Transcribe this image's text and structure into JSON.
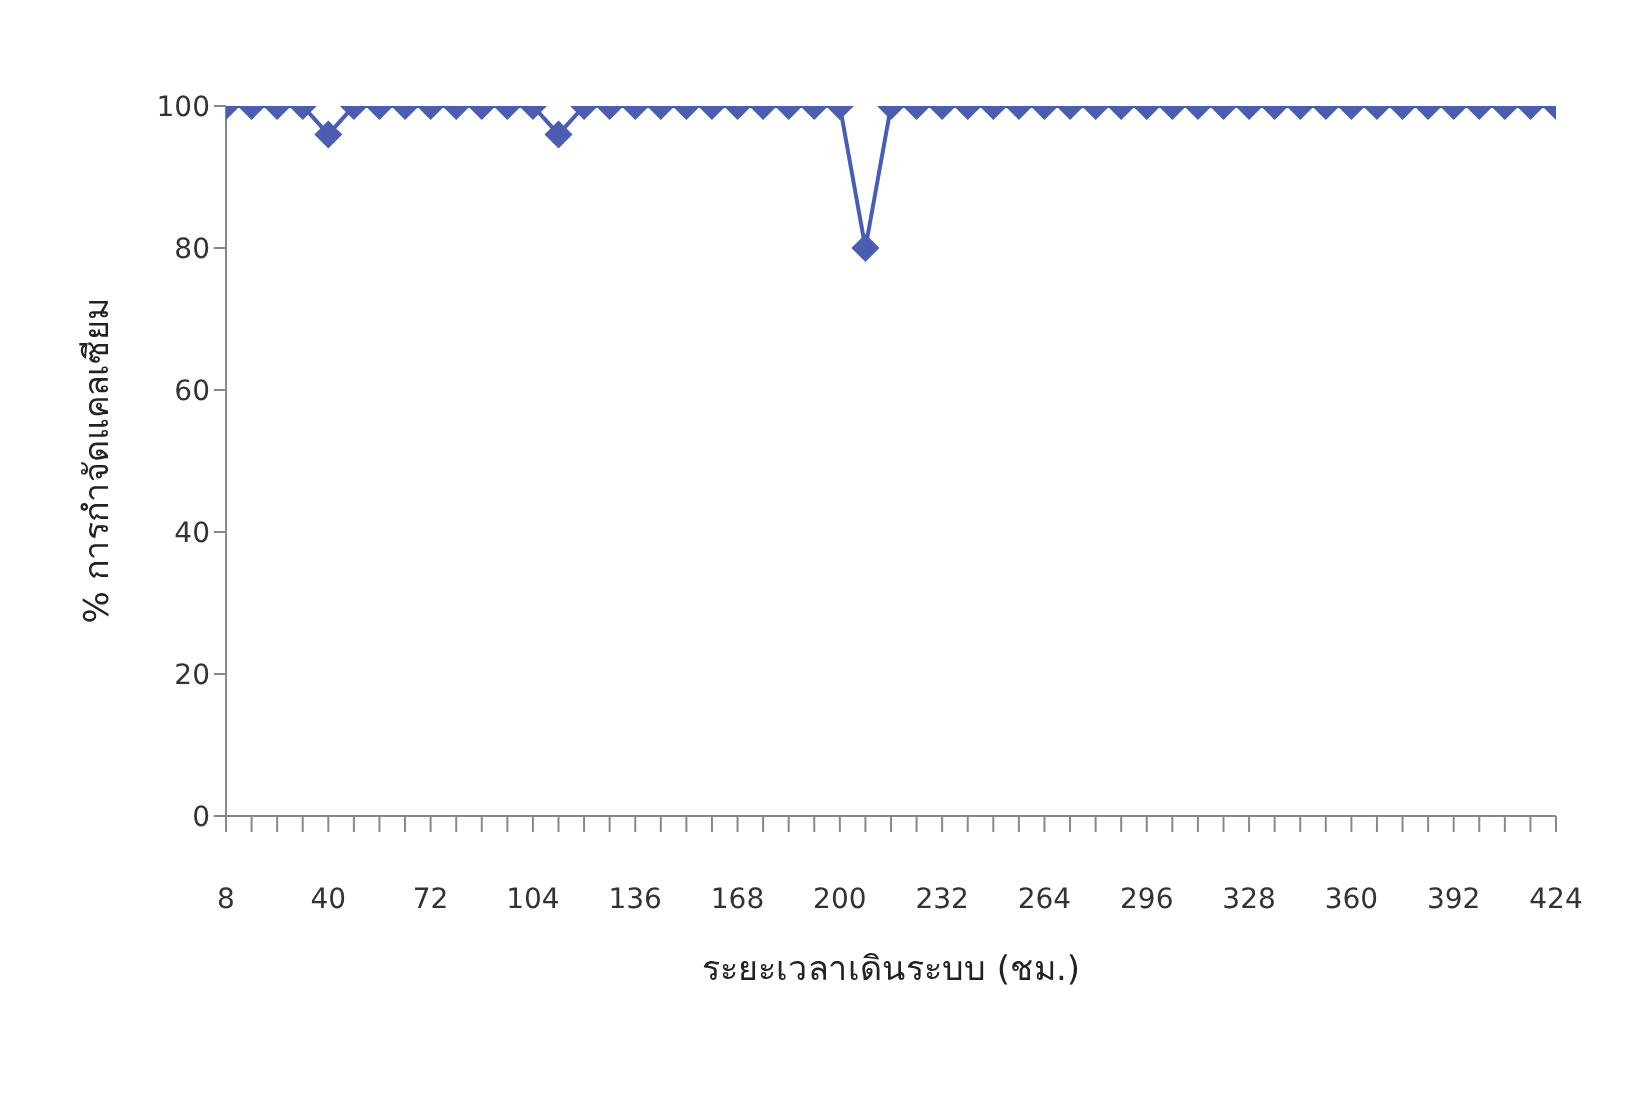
{
  "chart_data": {
    "type": "line",
    "xlabel": "ระยะเวลาเดินระบบ (ชม.)",
    "ylabel": "% การกำจัดแคลเซียม",
    "x": [
      8,
      16,
      24,
      32,
      40,
      48,
      56,
      64,
      72,
      80,
      88,
      96,
      104,
      112,
      120,
      128,
      136,
      144,
      152,
      160,
      168,
      176,
      184,
      192,
      200,
      208,
      216,
      224,
      232,
      240,
      248,
      256,
      264,
      272,
      280,
      288,
      296,
      304,
      312,
      320,
      328,
      336,
      344,
      352,
      360,
      368,
      376,
      384,
      392,
      400,
      408,
      416,
      424
    ],
    "series": [
      {
        "color": "#4a5db0",
        "values": [
          100,
          100,
          100,
          100,
          96,
          100,
          100,
          100,
          100,
          100,
          100,
          100,
          100,
          96,
          100,
          100,
          100,
          100,
          100,
          100,
          100,
          100,
          100,
          100,
          100,
          80,
          100,
          100,
          100,
          100,
          100,
          100,
          100,
          100,
          100,
          100,
          100,
          100,
          100,
          100,
          100,
          100,
          100,
          100,
          100,
          100,
          100,
          100,
          100,
          100,
          100,
          100,
          100
        ]
      }
    ],
    "xlim": [
      8,
      424
    ],
    "xticks": [
      8,
      {
        "value": 16,
        "label": null
      },
      {
        "value": 24,
        "label": null
      },
      {
        "value": 32,
        "label": null
      },
      40,
      {
        "value": 48,
        "label": null
      },
      {
        "value": 56,
        "label": null
      },
      {
        "value": 64,
        "label": null
      },
      72,
      {
        "value": 80,
        "label": null
      },
      {
        "value": 88,
        "label": null
      },
      {
        "value": 96,
        "label": null
      },
      104,
      {
        "value": 112,
        "label": null
      },
      {
        "value": 120,
        "label": null
      },
      {
        "value": 128,
        "label": null
      },
      136,
      {
        "value": 144,
        "label": null
      },
      {
        "value": 152,
        "label": null
      },
      {
        "value": 160,
        "label": null
      },
      168,
      {
        "value": 176,
        "label": null
      },
      {
        "value": 184,
        "label": null
      },
      {
        "value": 192,
        "label": null
      },
      200,
      {
        "value": 208,
        "label": null
      },
      {
        "value": 216,
        "label": null
      },
      {
        "value": 224,
        "label": null
      },
      232,
      {
        "value": 240,
        "label": null
      },
      {
        "value": 248,
        "label": null
      },
      {
        "value": 256,
        "label": null
      },
      264,
      {
        "value": 272,
        "label": null
      },
      {
        "value": 280,
        "label": null
      },
      {
        "value": 288,
        "label": null
      },
      296,
      {
        "value": 304,
        "label": null
      },
      {
        "value": 312,
        "label": null
      },
      {
        "value": 320,
        "label": null
      },
      328,
      {
        "value": 336,
        "label": null
      },
      {
        "value": 344,
        "label": null
      },
      {
        "value": 352,
        "label": null
      },
      360,
      {
        "value": 368,
        "label": null
      },
      {
        "value": 376,
        "label": null
      },
      {
        "value": 384,
        "label": null
      },
      392,
      {
        "value": 400,
        "label": null
      },
      {
        "value": 408,
        "label": null
      },
      {
        "value": 416,
        "label": null
      },
      424
    ],
    "ylim": [
      0,
      100
    ],
    "yticks": [
      0,
      20,
      40,
      60,
      80,
      100
    ],
    "marker": "diamond",
    "line_style": "solid",
    "grid": false,
    "legend": false
  }
}
